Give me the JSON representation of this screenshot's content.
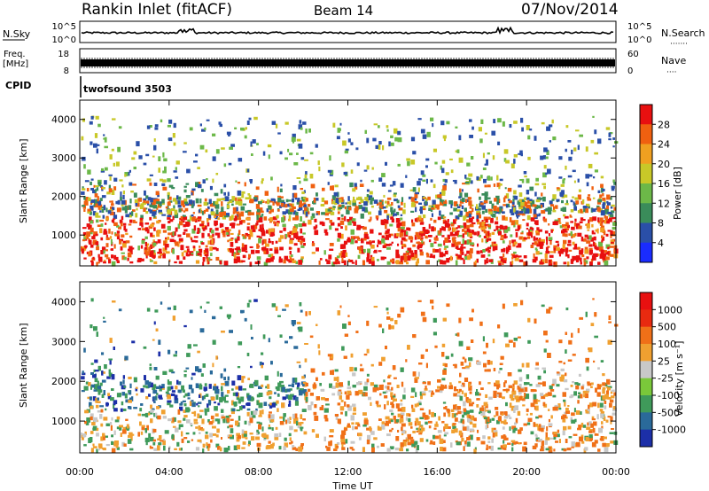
{
  "header": {
    "station": "Rankin Inlet (fitACF)",
    "beam": "Beam 14",
    "date": "07/Nov/2014"
  },
  "panels": {
    "nsky": {
      "left_label": "N.Sky",
      "left_ticks": [
        "10^5",
        "10^0"
      ],
      "right_ticks": [
        "10^5",
        "10^0"
      ],
      "right_label": "N.Search",
      "right_dots": "·······"
    },
    "freq": {
      "left_label_1": "Freq.",
      "left_label_2": "[MHz]",
      "left_ticks": [
        "18",
        "8"
      ],
      "right_ticks": [
        "60",
        "0"
      ],
      "right_label": "Nave",
      "right_dots": "····"
    },
    "cpid": {
      "label": "CPID",
      "program": "twofsound 3503"
    }
  },
  "chart_data": [
    {
      "type": "heatmap",
      "name": "power",
      "ylabel": "Slant Range [km]",
      "y_ticks": [
        1000,
        2000,
        3000,
        4000
      ],
      "ylim": [
        200,
        4500
      ],
      "xlim_hours": [
        0,
        24
      ],
      "x_ticks": [
        "00:00",
        "04:00",
        "08:00",
        "12:00",
        "16:00",
        "20:00",
        "00:00"
      ],
      "colorbar": {
        "label": "Power [dB]",
        "ticks": [
          "4",
          "8",
          "12",
          "16",
          "20",
          "24",
          "28"
        ],
        "colors": [
          "#1a2cff",
          "#2a4fa8",
          "#3a8c5a",
          "#6cb848",
          "#c8c828",
          "#f0a020",
          "#f06010",
          "#e81010"
        ]
      }
    },
    {
      "type": "heatmap",
      "name": "velocity",
      "ylabel": "Slant Range [km]",
      "y_ticks": [
        1000,
        2000,
        3000,
        4000
      ],
      "ylim": [
        200,
        4500
      ],
      "xlim_hours": [
        0,
        24
      ],
      "x_ticks": [
        "00:00",
        "04:00",
        "08:00",
        "12:00",
        "16:00",
        "20:00",
        "00:00"
      ],
      "xlabel": "Time UT",
      "colorbar": {
        "label": "Velocity [m s⁻¹]",
        "ticks": [
          "1000",
          "500",
          "100",
          "25",
          "-25",
          "-100",
          "-500",
          "-1000"
        ],
        "colors": [
          "#1c2fa8",
          "#2a6a9a",
          "#3f9a5a",
          "#7ac83a",
          "#c8c8c8",
          "#f0a030",
          "#f07018",
          "#e82a10",
          "#e81010"
        ]
      }
    }
  ]
}
